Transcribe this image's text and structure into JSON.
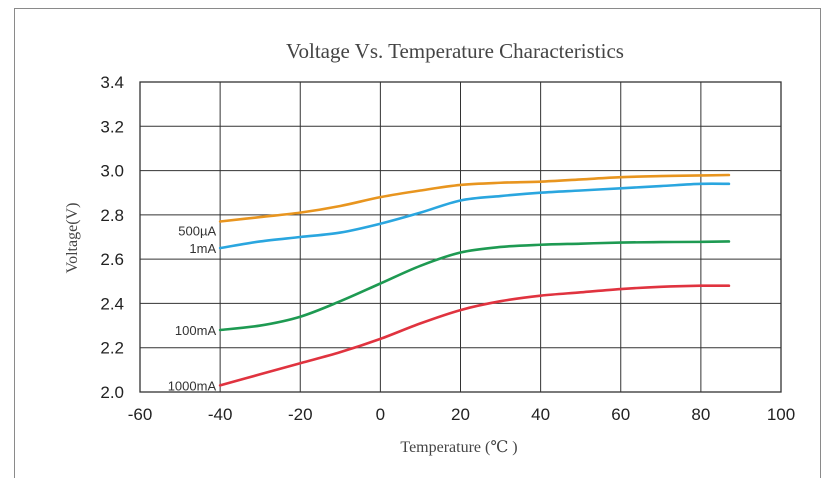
{
  "chart_data": {
    "type": "line",
    "title": "Voltage Vs. Temperature Characteristics",
    "xlabel": "Temperature (℃ )",
    "ylabel": "Voltage(V)",
    "xlim": [
      -60,
      100
    ],
    "ylim": [
      2.0,
      3.4
    ],
    "x_ticks": [
      "-60",
      "-40",
      "-20",
      "0",
      "20",
      "40",
      "60",
      "80",
      "100"
    ],
    "y_ticks": [
      "2.0",
      "2.2",
      "2.4",
      "2.6",
      "2.8",
      "3.0",
      "3.2",
      "3.4"
    ],
    "grid": true,
    "series": [
      {
        "name": "500µA",
        "color": "#e8951f",
        "x": [
          -40,
          -30,
          -20,
          -10,
          0,
          10,
          20,
          30,
          40,
          50,
          60,
          70,
          80,
          87
        ],
        "y": [
          2.77,
          2.79,
          2.81,
          2.84,
          2.88,
          2.91,
          2.935,
          2.945,
          2.95,
          2.96,
          2.97,
          2.975,
          2.978,
          2.98
        ]
      },
      {
        "name": "1mA",
        "color": "#2aa6df",
        "x": [
          -40,
          -30,
          -20,
          -10,
          0,
          10,
          20,
          30,
          40,
          50,
          60,
          70,
          80,
          87
        ],
        "y": [
          2.65,
          2.68,
          2.7,
          2.72,
          2.76,
          2.81,
          2.865,
          2.885,
          2.9,
          2.91,
          2.92,
          2.93,
          2.94,
          2.94
        ]
      },
      {
        "name": "100mA",
        "color": "#1e9a52",
        "x": [
          -40,
          -30,
          -20,
          -10,
          0,
          10,
          20,
          30,
          40,
          50,
          60,
          70,
          80,
          87
        ],
        "y": [
          2.28,
          2.3,
          2.34,
          2.41,
          2.49,
          2.57,
          2.63,
          2.655,
          2.665,
          2.67,
          2.675,
          2.677,
          2.678,
          2.68
        ]
      },
      {
        "name": "1000mA",
        "color": "#e0333f",
        "x": [
          -40,
          -30,
          -20,
          -10,
          0,
          10,
          20,
          30,
          40,
          50,
          60,
          70,
          80,
          87
        ],
        "y": [
          2.03,
          2.08,
          2.13,
          2.18,
          2.24,
          2.31,
          2.37,
          2.41,
          2.435,
          2.45,
          2.465,
          2.475,
          2.48,
          2.48
        ]
      }
    ]
  }
}
